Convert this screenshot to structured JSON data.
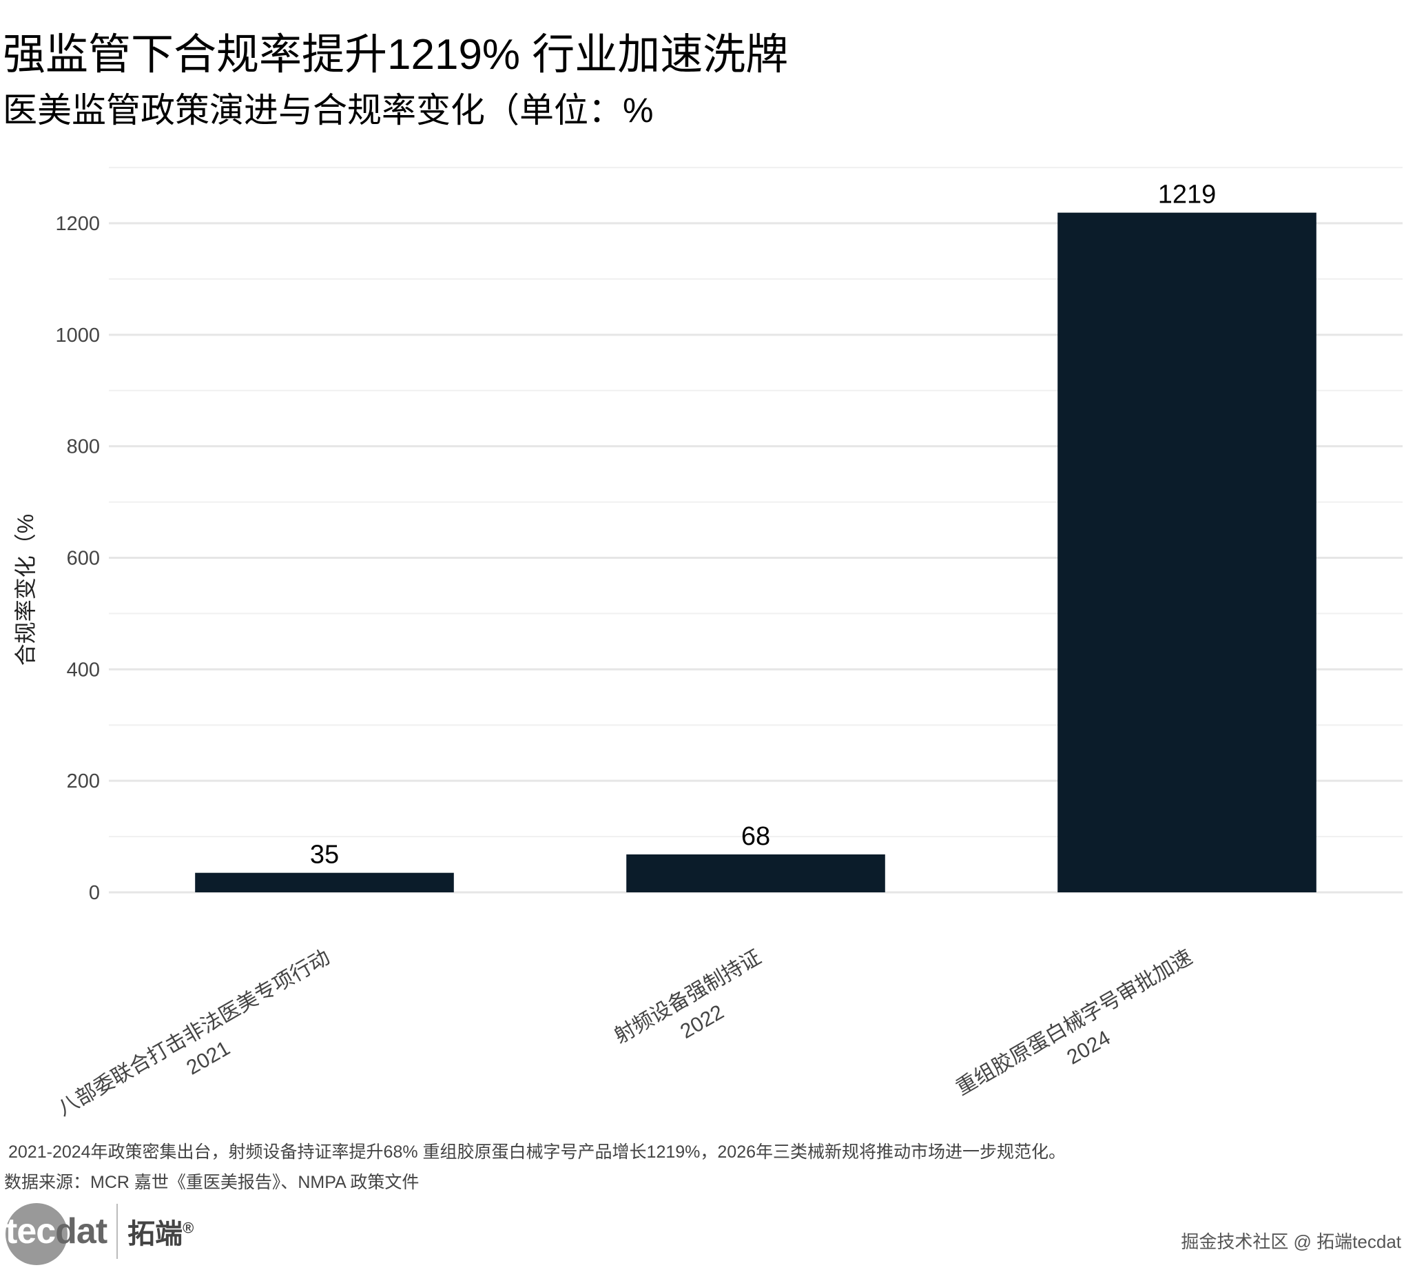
{
  "title": "强监管下合规率提升1219% 行业加速洗牌",
  "subtitle": "医美监管政策演进与合规率变化（单位：%",
  "chart_data": {
    "type": "bar",
    "categories": [
      {
        "line1": "八部委联合打击非法医美专项行动",
        "line2": "2021"
      },
      {
        "line1": "射频设备强制持证",
        "line2": "2022"
      },
      {
        "line1": "重组胶原蛋白械字号审批加速",
        "line2": "2024"
      }
    ],
    "values": [
      35,
      68,
      1219
    ],
    "ylabel": "合规率变化（%",
    "xlabel": "",
    "ylim": [
      0,
      1300
    ],
    "yticks": [
      0,
      200,
      400,
      600,
      800,
      1000,
      1200
    ],
    "grid": true,
    "bar_color": "#0b1c2a"
  },
  "caption": "2021-2024年政策密集出台，射频设备持证率提升68% 重组胶原蛋白械字号产品增长1219%，2026年三类械新规将推动市场进一步规范化。",
  "source": "数据来源：MCR 嘉世《重医美报告》、NMPA 政策文件",
  "logo": {
    "text_a": "tec",
    "text_b": "dat",
    "cn": "拓端",
    "reg": "®"
  },
  "watermark": "掘金技术社区 @ 拓端tecdat"
}
